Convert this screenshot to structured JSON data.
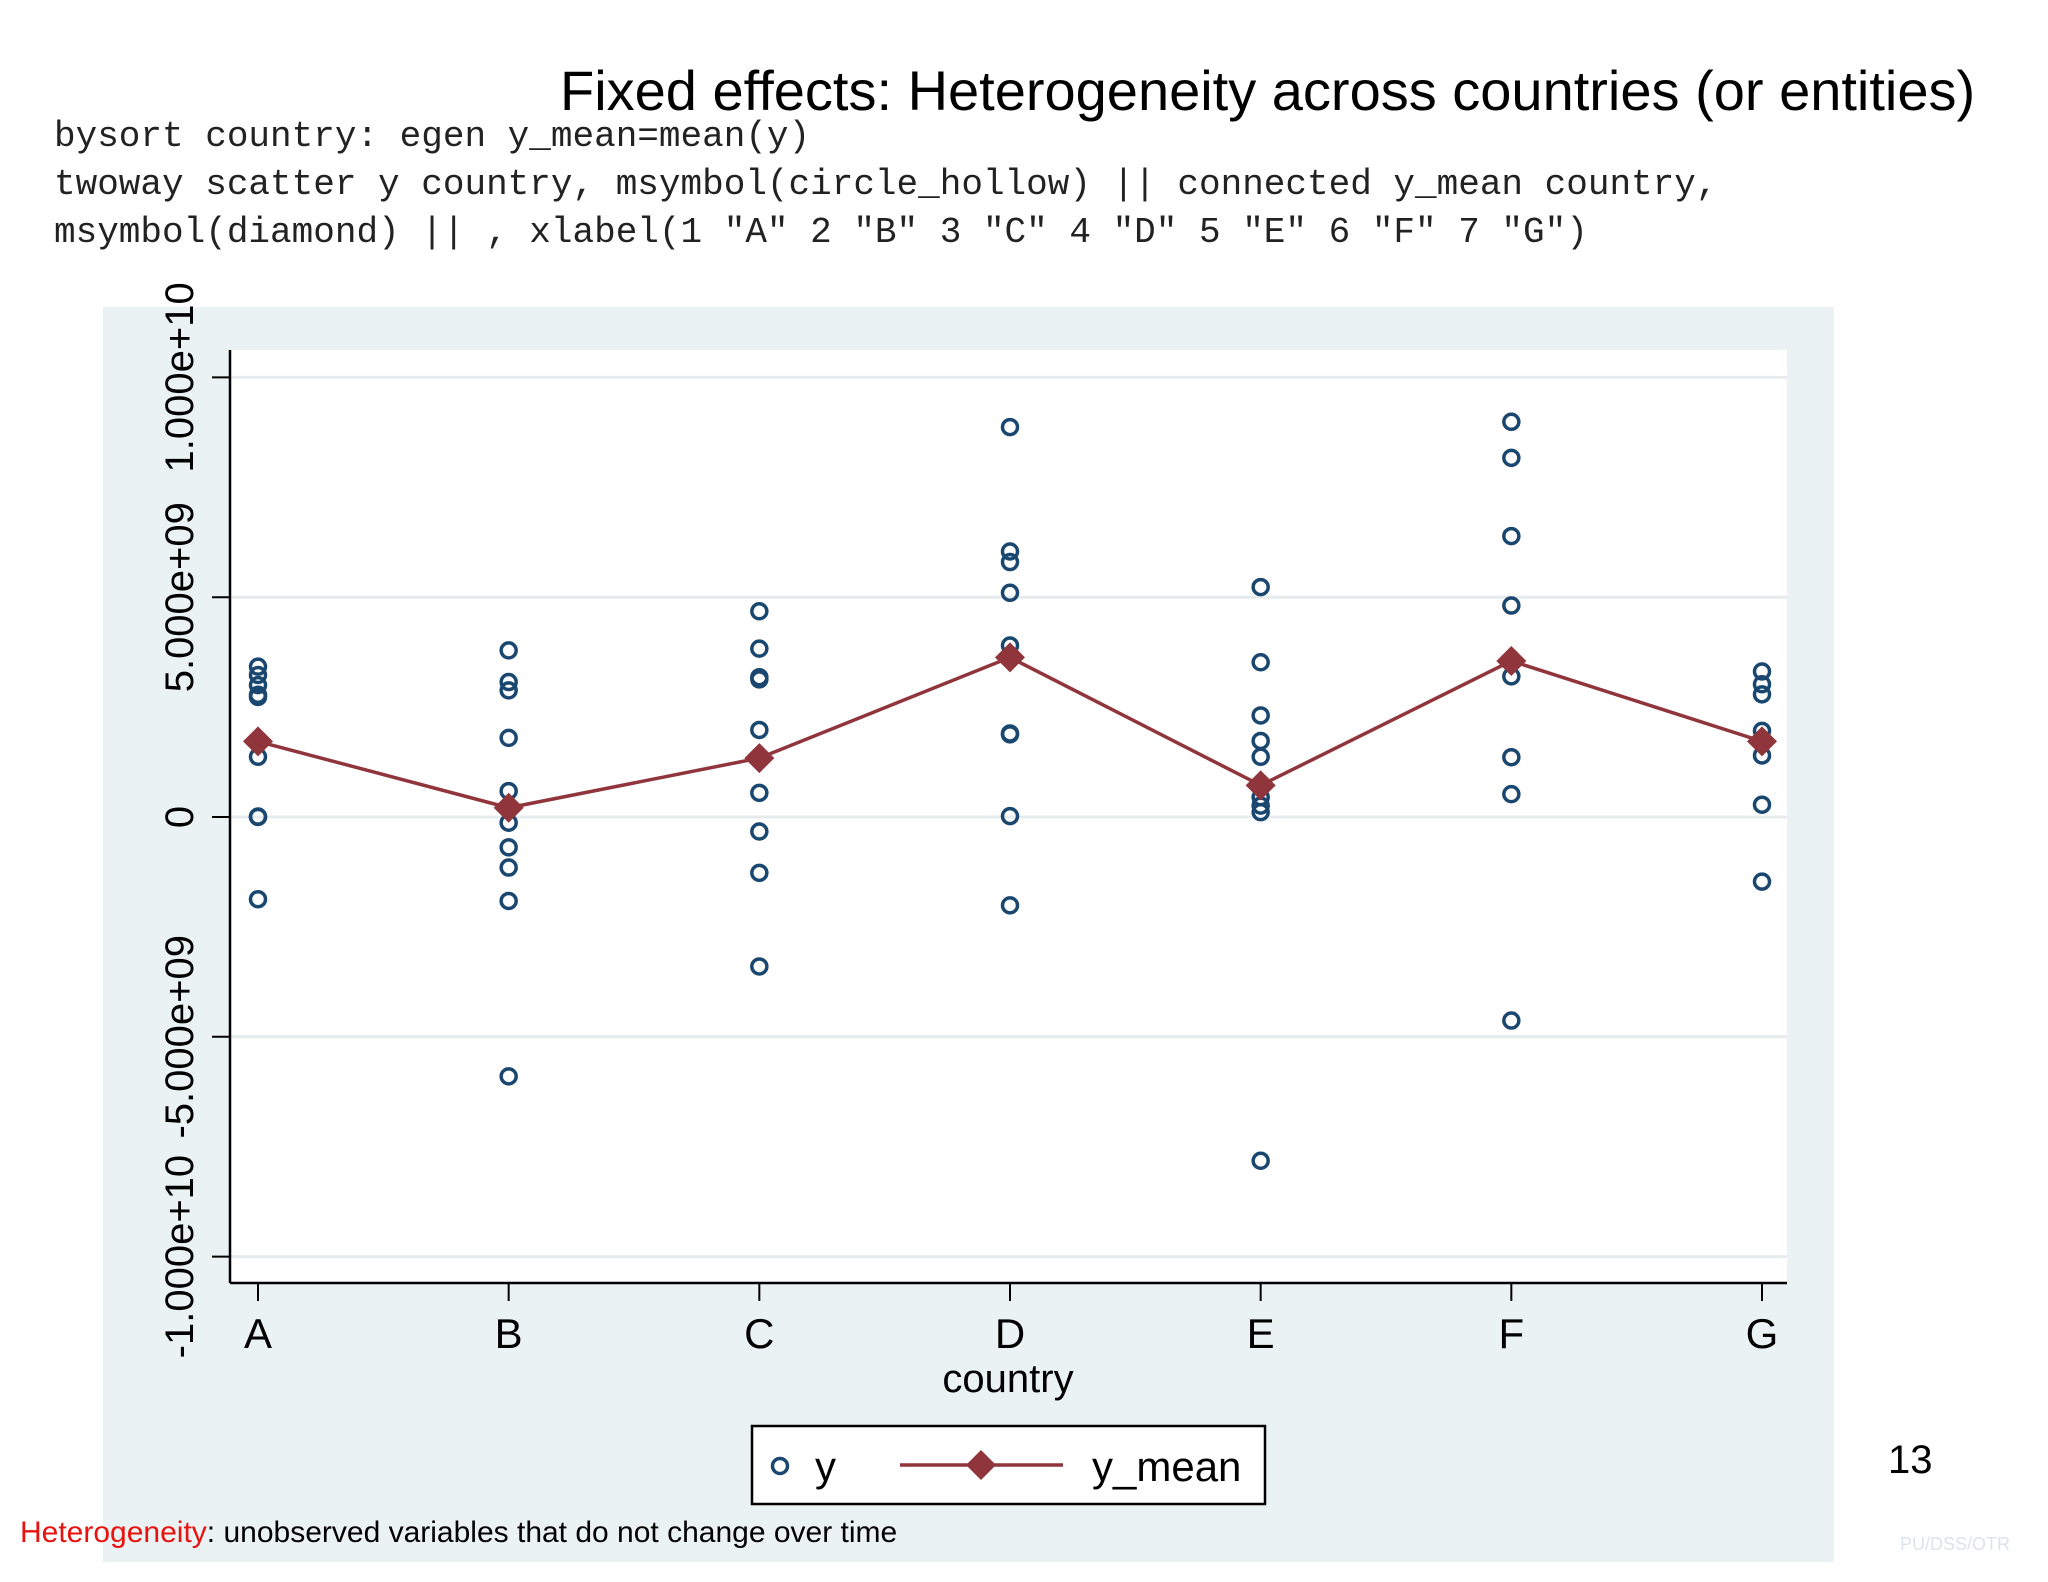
{
  "slide": {
    "title": "Fixed effects: Heterogeneity across countries (or entities)",
    "code_lines": [
      "bysort country: egen y_mean=mean(y)",
      "twoway scatter y country, msymbol(circle_hollow) || connected y_mean country,",
      "msymbol(diamond) || , xlabel(1 \"A\" 2 \"B\" 3 \"C\" 4 \"D\" 5 \"E\" 6 \"F\" 7 \"G\")"
    ],
    "footnote_highlight": "Heterogeneity",
    "footnote_rest": ": unobserved variables that do not change over time",
    "page_number": "13",
    "watermark": "PU/DSS/OTR"
  },
  "colors": {
    "scatter": "#1a476f",
    "mean_line": "#90353b",
    "plot_region_bg": "#eaf2f3",
    "plot_bg": "#ffffff",
    "footnote_highlight": "#e8130f"
  },
  "chart_data": {
    "type": "scatter",
    "xlabel": "country",
    "ylabel": "",
    "categories": [
      "A",
      "B",
      "C",
      "D",
      "E",
      "F",
      "G"
    ],
    "x_ticks": [
      1,
      2,
      3,
      4,
      5,
      6,
      7
    ],
    "y_ticks": [
      -10000000000,
      -5000000000,
      0,
      5000000000,
      10000000000
    ],
    "y_tick_labels": [
      "-1.000e+10",
      "-5.000e+09",
      "0",
      "5.000e+09",
      "1.000e+10"
    ],
    "ylim": [
      -10600000000,
      10600000000
    ],
    "xlim": [
      0.9,
      7.1
    ],
    "grid": true,
    "legend_position": "bottom",
    "series": [
      {
        "name": "y",
        "kind": "scatter",
        "marker": "circle_hollow",
        "points": [
          [
            1,
            3420000000
          ],
          [
            1,
            3230000000
          ],
          [
            1,
            3000000000
          ],
          [
            1,
            2730000000
          ],
          [
            1,
            2780000000
          ],
          [
            1,
            1370000000
          ],
          [
            1,
            10000000
          ],
          [
            1,
            0
          ],
          [
            1,
            -1870000000
          ],
          [
            2,
            3790000000
          ],
          [
            2,
            3070000000
          ],
          [
            2,
            2880000000
          ],
          [
            2,
            1800000000
          ],
          [
            2,
            590000000
          ],
          [
            2,
            -130000000
          ],
          [
            2,
            -690000000
          ],
          [
            2,
            -1150000000
          ],
          [
            2,
            -1910000000
          ],
          [
            2,
            -5900000000
          ],
          [
            3,
            4680000000
          ],
          [
            3,
            3830000000
          ],
          [
            3,
            3180000000
          ],
          [
            3,
            3130000000
          ],
          [
            3,
            1980000000
          ],
          [
            3,
            1340000000
          ],
          [
            3,
            550000000
          ],
          [
            3,
            -330000000
          ],
          [
            3,
            -1270000000
          ],
          [
            3,
            -3400000000
          ],
          [
            4,
            8870000000
          ],
          [
            4,
            6040000000
          ],
          [
            4,
            5800000000
          ],
          [
            4,
            5100000000
          ],
          [
            4,
            3900000000
          ],
          [
            4,
            1880000000
          ],
          [
            4,
            1900000000
          ],
          [
            4,
            20000000
          ],
          [
            4,
            -2010000000
          ],
          [
            5,
            5230000000
          ],
          [
            5,
            3520000000
          ],
          [
            5,
            2310000000
          ],
          [
            5,
            1730000000
          ],
          [
            5,
            1370000000
          ],
          [
            5,
            450000000
          ],
          [
            5,
            260000000
          ],
          [
            5,
            110000000
          ],
          [
            5,
            -7820000000
          ],
          [
            6,
            8990000000
          ],
          [
            6,
            8170000000
          ],
          [
            6,
            6390000000
          ],
          [
            6,
            4810000000
          ],
          [
            6,
            3200000000
          ],
          [
            6,
            1360000000
          ],
          [
            6,
            520000000
          ],
          [
            6,
            -4630000000
          ],
          [
            7,
            3310000000
          ],
          [
            7,
            3020000000
          ],
          [
            7,
            2790000000
          ],
          [
            7,
            1960000000
          ],
          [
            7,
            1740000000
          ],
          [
            7,
            1400000000
          ],
          [
            7,
            280000000
          ],
          [
            7,
            -1470000000
          ]
        ]
      },
      {
        "name": "y_mean",
        "kind": "connected",
        "marker": "diamond",
        "x": [
          1,
          2,
          3,
          4,
          5,
          6,
          7
        ],
        "values": [
          1720000000,
          210000000,
          1340000000,
          3630000000,
          720000000,
          3550000000,
          1720000000
        ]
      }
    ]
  }
}
